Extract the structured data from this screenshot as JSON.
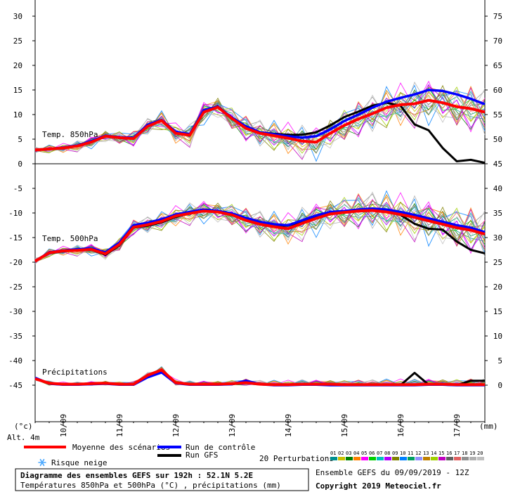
{
  "chart_data": {
    "type": "line",
    "x_dates": [
      "10/09",
      "11/09",
      "12/09",
      "13/09",
      "14/09",
      "15/09",
      "16/09",
      "17/09"
    ],
    "y_left_ticks": [
      30,
      25,
      20,
      15,
      10,
      5,
      0,
      -5,
      -10,
      -15,
      -20,
      -25,
      -30,
      -35,
      -40,
      -45
    ],
    "y_right_ticks": [
      75,
      70,
      65,
      60,
      55,
      50,
      45,
      40,
      35,
      30,
      25,
      20,
      15,
      10,
      5,
      0
    ],
    "ylim_left": [
      -50,
      30
    ],
    "ylim_right": [
      -5,
      75
    ],
    "left_unit": "(°c)",
    "right_unit": "(mm)",
    "altitude": "Alt. 4m",
    "hours": [
      0,
      6,
      12,
      18,
      24,
      30,
      36,
      42,
      48,
      54,
      60,
      66,
      72,
      78,
      84,
      90,
      96,
      102,
      108,
      114,
      120,
      126,
      132,
      138,
      144,
      150,
      156,
      162,
      168,
      174,
      180,
      186,
      192
    ],
    "panels": [
      {
        "label": "Temp. 850hPa",
        "series": [
          {
            "name": "Moyenne des scénarios",
            "color": "#ff0000",
            "values": [
              2.8,
              3.0,
              3.2,
              3.6,
              4.4,
              5.6,
              5.3,
              5.1,
              7.6,
              8.8,
              6.2,
              5.8,
              10.5,
              11.5,
              9.2,
              7.2,
              6.2,
              5.7,
              5.2,
              4.6,
              4.4,
              6.2,
              7.8,
              9.1,
              10.2,
              11.4,
              12.0,
              12.2,
              12.9,
              12.4,
              11.6,
              11.2,
              10.5
            ]
          },
          {
            "name": "Run de contrôle",
            "color": "#0000ff",
            "values": [
              2.8,
              3.0,
              3.3,
              3.7,
              4.6,
              5.7,
              5.4,
              5.3,
              7.9,
              8.9,
              6.5,
              6.0,
              10.9,
              11.6,
              9.4,
              7.6,
              6.4,
              6.0,
              5.6,
              5.3,
              5.6,
              7.0,
              8.7,
              10.0,
              11.4,
              12.6,
              13.4,
              14.1,
              15.0,
              14.8,
              14.1,
              13.2,
              12.1
            ]
          },
          {
            "name": "Run GFS",
            "color": "#000000",
            "values": [
              2.8,
              3.0,
              3.2,
              3.6,
              4.4,
              5.6,
              5.4,
              5.2,
              7.8,
              8.9,
              6.3,
              5.9,
              10.7,
              11.7,
              9.3,
              7.5,
              6.4,
              6.1,
              5.9,
              5.9,
              6.4,
              7.8,
              9.5,
              10.6,
              11.8,
              12.4,
              11.8,
              8.0,
              6.8,
              3.2,
              0.5,
              0.8,
              0.2
            ]
          }
        ]
      },
      {
        "label": "Temp. 500hPa",
        "series": [
          {
            "name": "Moyenne des scénarios",
            "color": "#ff0000",
            "values": [
              -19.8,
              -18.1,
              -17.7,
              -17.6,
              -17.4,
              -18.3,
              -16.4,
              -12.9,
              -12.4,
              -11.7,
              -10.6,
              -10.1,
              -9.6,
              -9.8,
              -10.4,
              -11.5,
              -12.3,
              -12.8,
              -13.2,
              -12.1,
              -11.1,
              -10.2,
              -9.9,
              -9.6,
              -9.5,
              -9.8,
              -10.3,
              -10.9,
              -11.6,
              -12.3,
              -13.0,
              -13.5,
              -14.3
            ]
          },
          {
            "name": "Run de contrôle",
            "color": "#0000ff",
            "values": [
              -19.8,
              -18.0,
              -17.6,
              -17.4,
              -17.2,
              -18.0,
              -16.0,
              -12.5,
              -12.0,
              -11.3,
              -10.3,
              -9.8,
              -9.3,
              -9.6,
              -10.1,
              -11.0,
              -11.8,
              -12.3,
              -12.5,
              -11.5,
              -10.5,
              -9.8,
              -9.6,
              -9.3,
              -9.1,
              -9.3,
              -9.8,
              -10.4,
              -11.1,
              -11.8,
              -12.5,
              -13.0,
              -13.9
            ]
          },
          {
            "name": "Run GFS",
            "color": "#000000",
            "values": [
              -19.8,
              -18.2,
              -17.8,
              -17.5,
              -17.5,
              -18.5,
              -16.6,
              -13.0,
              -12.6,
              -11.9,
              -10.8,
              -10.1,
              -9.6,
              -9.7,
              -10.2,
              -11.3,
              -12.0,
              -12.5,
              -12.6,
              -11.7,
              -10.9,
              -10.0,
              -9.6,
              -9.4,
              -9.4,
              -9.7,
              -10.4,
              -12.2,
              -13.2,
              -13.4,
              -15.8,
              -17.5,
              -18.2
            ]
          }
        ]
      },
      {
        "label": "Précipitations",
        "series": [
          {
            "name": "Moyenne des scénarios",
            "color": "#ff0000",
            "values": [
              1.3,
              0.4,
              0.2,
              0.2,
              0.3,
              0.4,
              0.2,
              0.2,
              2.0,
              3.1,
              0.5,
              0.2,
              0.2,
              0.2,
              0.3,
              0.5,
              0.2,
              0.1,
              0.1,
              0.2,
              0.2,
              0.2,
              0.1,
              0.1,
              0.1,
              0.1,
              0.1,
              0.1,
              0.2,
              0.2,
              0.1,
              0.1,
              0.1
            ]
          },
          {
            "name": "Run de contrôle",
            "color": "#0000ff",
            "values": [
              1.5,
              0.3,
              0.1,
              0.1,
              0.2,
              0.3,
              0.1,
              0.1,
              1.6,
              2.6,
              0.4,
              0.1,
              0.1,
              0.1,
              0.2,
              0.9,
              0.2,
              0.0,
              0.0,
              0.1,
              0.1,
              0.0,
              0.0,
              0.0,
              0.0,
              0.0,
              0.0,
              0.0,
              0.1,
              0.1,
              0.0,
              0.0,
              0.0
            ]
          },
          {
            "name": "Run GFS",
            "color": "#000000",
            "values": [
              1.4,
              0.3,
              0.1,
              0.1,
              0.2,
              0.3,
              0.2,
              0.1,
              1.9,
              2.8,
              0.4,
              0.2,
              0.1,
              0.1,
              0.2,
              0.6,
              0.2,
              0.1,
              0.1,
              0.1,
              0.1,
              0.1,
              0.0,
              0.0,
              0.0,
              0.0,
              0.0,
              2.5,
              0.1,
              0.1,
              0.0,
              0.9,
              0.9
            ]
          }
        ]
      }
    ]
  },
  "legend": {
    "mean_label": "Moyenne des scénarios",
    "control_label": "Run de contrôle",
    "gfs_label": "Run GFS",
    "snow_label": "Risque neige",
    "perturbations_label": "20 Perturbations",
    "perturbation_numbers": [
      "01",
      "02",
      "03",
      "04",
      "05",
      "06",
      "07",
      "08",
      "09",
      "10",
      "11",
      "12",
      "13",
      "14",
      "15",
      "16",
      "17",
      "18",
      "19",
      "20"
    ],
    "perturbation_colors": [
      "#009090",
      "#c8c000",
      "#008000",
      "#ff8000",
      "#ff00ff",
      "#00d000",
      "#00c0c0",
      "#b000ff",
      "#808000",
      "#0080ff",
      "#00a060",
      "#9090ff",
      "#c08000",
      "#a0d000",
      "#c000c0",
      "#606060",
      "#e06060",
      "#909090",
      "#b0b0b0",
      "#c0c0c0"
    ],
    "colors": {
      "mean": "#ff0000",
      "control": "#0000ff",
      "gfs": "#000000",
      "snow": "#4aa8ff"
    }
  },
  "footer": {
    "title": "Diagramme des ensembles GEFS sur 192h : 52.1N 5.2E",
    "subtitle": "Températures 850hPa et 500hPa (°C) , précipitations (mm)",
    "run_info": "Ensemble GEFS du 09/09/2019 - 12Z",
    "copyright": "Copyright 2019 Meteociel.fr"
  }
}
